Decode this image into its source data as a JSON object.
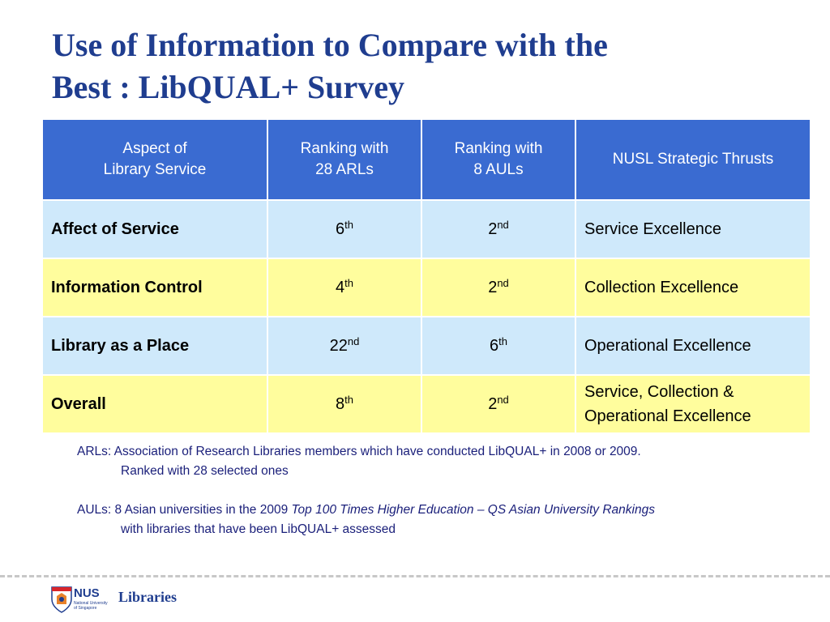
{
  "title": {
    "line1": "Use of Information to Compare with the",
    "line2": "Best : LibQUAL+ Survey"
  },
  "table": {
    "headers": {
      "aspect_line1": "Aspect of",
      "aspect_line2": "Library Service",
      "arl_line1": "Ranking with",
      "arl_line2": "28 ARLs",
      "aul_line1": "Ranking with",
      "aul_line2": "8 AULs",
      "thrusts": "NUSL Strategic Thrusts"
    },
    "rows": [
      {
        "aspect": "Affect of Service",
        "arl_num": "6",
        "arl_suffix": "th",
        "aul_num": "2",
        "aul_suffix": "nd",
        "thrust_line1": "Service Excellence",
        "thrust_line2": ""
      },
      {
        "aspect": "Information Control",
        "arl_num": "4",
        "arl_suffix": "th",
        "aul_num": "2",
        "aul_suffix": "nd",
        "thrust_line1": "Collection Excellence",
        "thrust_line2": ""
      },
      {
        "aspect": "Library as a Place",
        "arl_num": "22",
        "arl_suffix": "nd",
        "aul_num": "6",
        "aul_suffix": "th",
        "thrust_line1": "Operational Excellence",
        "thrust_line2": ""
      },
      {
        "aspect": "Overall",
        "arl_num": "8",
        "arl_suffix": "th",
        "aul_num": "2",
        "aul_suffix": "nd",
        "thrust_line1": "Service, Collection &",
        "thrust_line2": "Operational Excellence"
      }
    ],
    "colors": {
      "header": "#3a6bd1",
      "blue_row": "#cfe9fb",
      "yellow_row": "#fffd9d"
    }
  },
  "notes": {
    "arl_line1": "ARLs:  Association of  Research Libraries members which have conducted LibQUAL+ in 2008 or 2009.",
    "arl_line2": "Ranked with 28 selected ones",
    "aul_prefix": "AULs:  8 Asian universities in the 2009 ",
    "aul_italic": "Top 100 Times Higher Education – QS Asian University Rankings",
    "aul_line2": "with libraries that have been LibQUAL+ assessed"
  },
  "footer": {
    "logo_text": "NUS",
    "logo_sub1": "National University",
    "logo_sub2": "of Singapore",
    "logo_icon": "nus-crest-icon",
    "libraries": "Libraries"
  }
}
